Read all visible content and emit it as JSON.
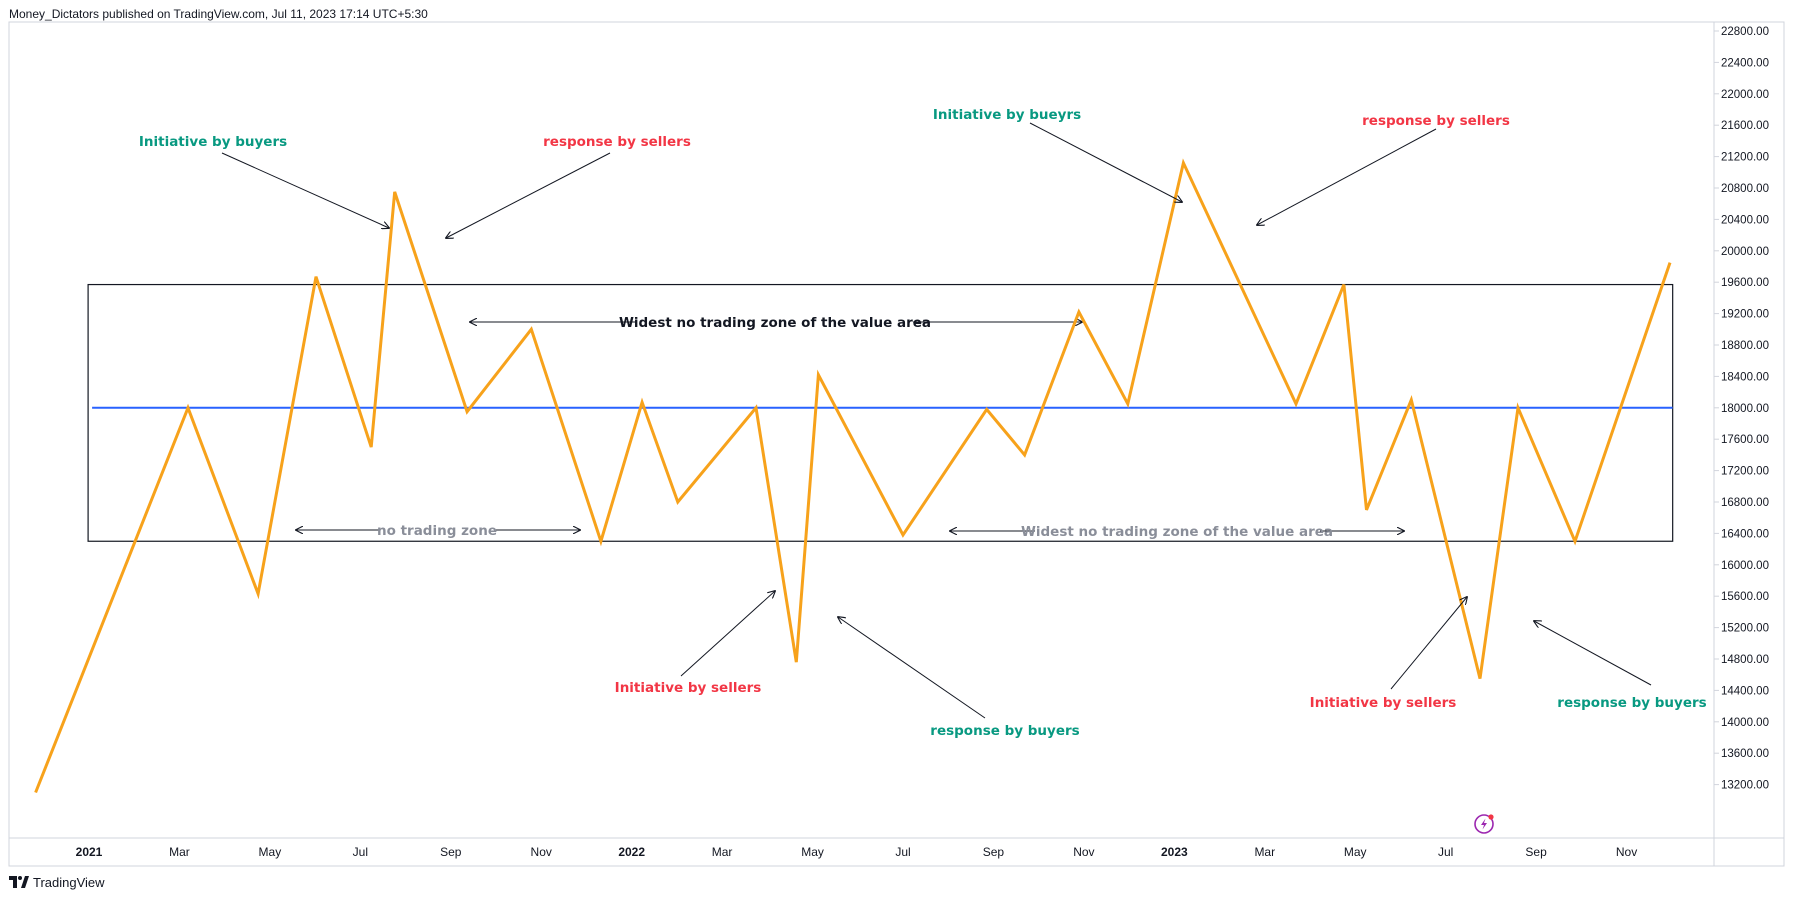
{
  "header": {
    "text": "Money_Dictators published on TradingView.com, Jul 11, 2023 17:14 UTC+5:30"
  },
  "footer": {
    "brand": "TradingView"
  },
  "colors": {
    "price_line": "#f7a21b",
    "value_line": "#2962ff",
    "buyers": "#089981",
    "sellers": "#f23645",
    "zone_label": "#131722",
    "zone_label_muted": "#8a8e99",
    "grid_axis": "#d1d4dc",
    "text": "#131722"
  },
  "chart_data": {
    "type": "line",
    "title": "",
    "xlabel": "",
    "ylabel": "",
    "ylim": [
      12800,
      22800
    ],
    "x_range_months": [
      0,
      36
    ],
    "x_ticks": [
      {
        "label": "2021",
        "month": 0,
        "bold": true
      },
      {
        "label": "Mar",
        "month": 2,
        "bold": false
      },
      {
        "label": "May",
        "month": 4,
        "bold": false
      },
      {
        "label": "Jul",
        "month": 6,
        "bold": false
      },
      {
        "label": "Sep",
        "month": 8,
        "bold": false
      },
      {
        "label": "Nov",
        "month": 10,
        "bold": false
      },
      {
        "label": "2022",
        "month": 12,
        "bold": true
      },
      {
        "label": "Mar",
        "month": 14,
        "bold": false
      },
      {
        "label": "May",
        "month": 16,
        "bold": false
      },
      {
        "label": "Jul",
        "month": 18,
        "bold": false
      },
      {
        "label": "Sep",
        "month": 20,
        "bold": false
      },
      {
        "label": "Nov",
        "month": 22,
        "bold": false
      },
      {
        "label": "2023",
        "month": 24,
        "bold": true
      },
      {
        "label": "Mar",
        "month": 26,
        "bold": false
      },
      {
        "label": "May",
        "month": 28,
        "bold": false
      },
      {
        "label": "Jul",
        "month": 30,
        "bold": false
      },
      {
        "label": "Sep",
        "month": 32,
        "bold": false
      },
      {
        "label": "Nov",
        "month": 34,
        "bold": false
      }
    ],
    "y_ticks": [
      "13200.00",
      "13600.00",
      "14000.00",
      "14400.00",
      "14800.00",
      "15200.00",
      "15600.00",
      "16000.00",
      "16400.00",
      "16800.00",
      "17200.00",
      "17600.00",
      "18000.00",
      "18400.00",
      "18800.00",
      "19200.00",
      "19600.00",
      "20000.00",
      "20400.00",
      "20800.00",
      "21200.00",
      "21600.00",
      "22000.00",
      "22400.00",
      "22800.00"
    ],
    "series": [
      {
        "name": "Price",
        "points": [
          [
            -1.18,
            13100
          ],
          [
            1.02,
            16300
          ],
          [
            2.19,
            18000
          ],
          [
            3.74,
            15630
          ],
          [
            5.02,
            19670
          ],
          [
            6.24,
            17500
          ],
          [
            6.76,
            20750
          ],
          [
            8.36,
            17950
          ],
          [
            9.78,
            19000
          ],
          [
            11.32,
            16300
          ],
          [
            12.23,
            18070
          ],
          [
            13.02,
            16800
          ],
          [
            14.75,
            18000
          ],
          [
            15.64,
            14760
          ],
          [
            16.13,
            18420
          ],
          [
            18.0,
            16380
          ],
          [
            19.85,
            17980
          ],
          [
            20.69,
            17400
          ],
          [
            21.89,
            19220
          ],
          [
            22.97,
            18050
          ],
          [
            24.2,
            21120
          ],
          [
            26.69,
            18050
          ],
          [
            27.75,
            19570
          ],
          [
            28.25,
            16700
          ],
          [
            29.24,
            18100
          ],
          [
            30.76,
            14550
          ],
          [
            31.6,
            18000
          ],
          [
            32.86,
            16300
          ],
          [
            34.96,
            19850
          ]
        ]
      }
    ],
    "value_area": {
      "high": 19570,
      "low": 16300,
      "start_month": -0.02,
      "end_month": 35.02,
      "mid": 18000
    },
    "annotations": [
      {
        "text": "Initiative by buyers",
        "side": "buyers"
      },
      {
        "text": "response by sellers",
        "side": "sellers"
      },
      {
        "text": "Initiative by bueyrs",
        "side": "buyers"
      },
      {
        "text": "response by sellers",
        "side": "sellers"
      },
      {
        "text": "Initiative by sellers",
        "side": "sellers"
      },
      {
        "text": "response by buyers",
        "side": "buyers"
      },
      {
        "text": "Initiative by sellers",
        "side": "sellers"
      },
      {
        "text": "response by buyers",
        "side": "buyers"
      },
      {
        "text": "Widest no trading zone of the value area",
        "side": "zone"
      },
      {
        "text": "no trading zone",
        "side": "zone"
      },
      {
        "text": "Widest no trading zone of the value area",
        "side": "zone"
      }
    ]
  }
}
